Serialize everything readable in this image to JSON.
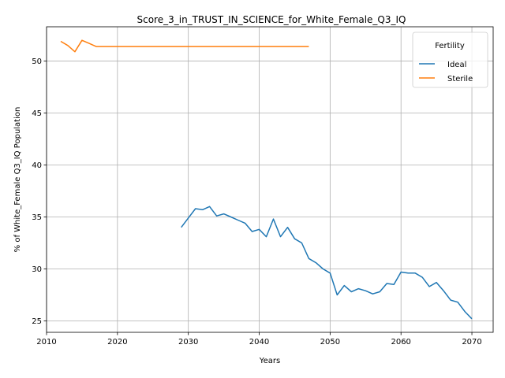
{
  "chart_data": {
    "type": "line",
    "title": "Score_3_in_TRUST_IN_SCIENCE_for_White_Female_Q3_IQ",
    "xlabel": "Years",
    "ylabel": "% of White_Female Q3_IQ Population",
    "xlim": [
      2010,
      2073
    ],
    "ylim": [
      23.9,
      53.3
    ],
    "xticks": [
      "2010",
      "2020",
      "2030",
      "2040",
      "2050",
      "2060",
      "2070"
    ],
    "yticks": [
      "25",
      "30",
      "35",
      "40",
      "45",
      "50"
    ],
    "grid": true,
    "legend": {
      "title": "Fertility",
      "placement": "top-right"
    },
    "series": [
      {
        "name": "Ideal",
        "color": "#1f77b4",
        "x": [
          2029,
          2030,
          2031,
          2032,
          2033,
          2034,
          2035,
          2036,
          2037,
          2038,
          2039,
          2040,
          2041,
          2042,
          2043,
          2044,
          2045,
          2046,
          2047,
          2048,
          2049,
          2050,
          2051,
          2052,
          2053,
          2054,
          2055,
          2056,
          2057,
          2058,
          2059,
          2060,
          2061,
          2062,
          2063,
          2064,
          2065,
          2066,
          2067,
          2068,
          2069,
          2070
        ],
        "values": [
          34.0,
          34.9,
          35.8,
          35.7,
          36.0,
          35.1,
          35.3,
          35.0,
          34.7,
          34.4,
          33.6,
          33.8,
          33.1,
          34.8,
          33.1,
          34.0,
          32.9,
          32.5,
          31.0,
          30.6,
          30.0,
          29.6,
          27.5,
          28.4,
          27.8,
          28.1,
          27.9,
          27.6,
          27.8,
          28.6,
          28.5,
          29.7,
          29.6,
          29.6,
          29.2,
          28.3,
          28.7,
          27.9,
          27.0,
          26.8,
          25.9,
          25.2
        ]
      },
      {
        "name": "Sterile",
        "color": "#ff7f0e",
        "x": [
          2012,
          2013,
          2014,
          2015,
          2016,
          2017,
          2018,
          2019,
          2020,
          2021,
          2022,
          2023,
          2024,
          2025,
          2026,
          2027,
          2028,
          2029,
          2030,
          2031,
          2032,
          2033,
          2034,
          2035,
          2036,
          2037,
          2038,
          2039,
          2040,
          2041,
          2042,
          2043,
          2044,
          2045,
          2046,
          2047
        ],
        "values": [
          51.9,
          51.5,
          50.9,
          52.0,
          51.7,
          51.4,
          51.4,
          51.4,
          51.4,
          51.4,
          51.4,
          51.4,
          51.4,
          51.4,
          51.4,
          51.4,
          51.4,
          51.4,
          51.4,
          51.4,
          51.4,
          51.4,
          51.4,
          51.4,
          51.4,
          51.4,
          51.4,
          51.4,
          51.4,
          51.4,
          51.4,
          51.4,
          51.4,
          51.4,
          51.4,
          51.4
        ]
      }
    ]
  }
}
